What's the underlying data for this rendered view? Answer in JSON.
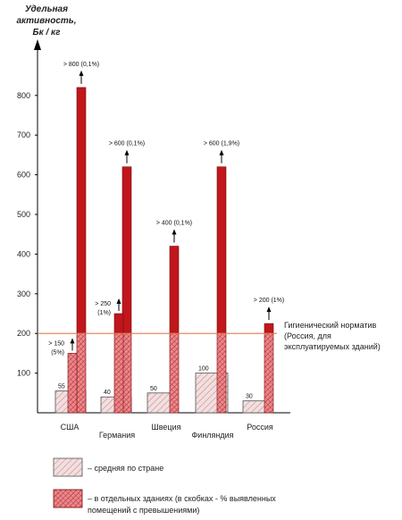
{
  "chart_data": {
    "type": "bar",
    "ylabel_lines": [
      "Удельная",
      "активность,",
      "Бк / кг"
    ],
    "yticks": [
      100,
      200,
      300,
      400,
      500,
      600,
      700,
      800
    ],
    "ylim": [
      0,
      900
    ],
    "categories": [
      "США",
      "Германия",
      "Швеция",
      "Финляндия",
      "Россия"
    ],
    "series": [
      {
        "legend_label": "– средняя по стране",
        "values": [
          55,
          40,
          50,
          100,
          30
        ],
        "value_labels": [
          "55",
          "40",
          "50",
          "100",
          "30"
        ]
      },
      {
        "legend_label_lines": [
          "– в отдельных зданиях (в скобках - % выявленных",
          "помещений с превышениями)"
        ],
        "values": [
          820,
          620,
          420,
          620,
          225
        ]
      }
    ],
    "extra_bars": [
      {
        "category_index": 0,
        "value": 150,
        "label_lines": [
          "> 150",
          "(5%)"
        ]
      },
      {
        "category_index": 1,
        "value": 250,
        "label_lines": [
          "> 250",
          "(1%)"
        ]
      }
    ],
    "tall_labels": [
      "> 800 (0,1%)",
      "> 600 (0,1%)",
      "> 400 (0,1%)",
      "> 600 (1,9%)",
      "> 200 (1%)"
    ],
    "norm": {
      "value": 200,
      "label_lines": [
        "Гигиенический норматив",
        "(Россия, для",
        "эксплуатируемых зданий)"
      ]
    },
    "colors": {
      "tall": "#c0161c",
      "tall_edge": "#7a0a0c",
      "avg_fill": "#f2dfe0",
      "avg_edge": "#555555",
      "hatch_bg": "#e58a8e",
      "norm_line": "#e07b52",
      "axis": "#000000"
    }
  }
}
